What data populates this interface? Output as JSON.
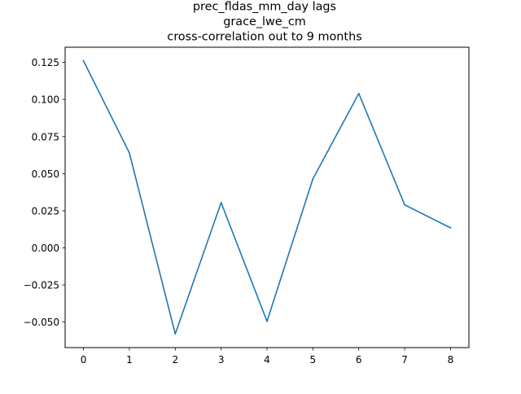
{
  "chart_data": {
    "type": "line",
    "title": [
      "prec_fldas_mm_day lags",
      "grace_lwe_cm",
      "cross-correlation out to 9 months"
    ],
    "xlabel": "",
    "ylabel": "",
    "x": [
      0,
      1,
      2,
      3,
      4,
      5,
      6,
      7,
      8
    ],
    "series": [
      {
        "values": [
          0.126,
          0.064,
          -0.058,
          0.0305,
          -0.0495,
          0.0465,
          0.104,
          0.029,
          0.0135
        ],
        "color": "#1f77b4"
      }
    ],
    "xticks": [
      0,
      1,
      2,
      3,
      4,
      5,
      6,
      7,
      8
    ],
    "xtick_labels": [
      "0",
      "1",
      "2",
      "3",
      "4",
      "5",
      "6",
      "7",
      "8"
    ],
    "yticks": [
      -0.05,
      -0.025,
      0.0,
      0.025,
      0.05,
      0.075,
      0.1,
      0.125
    ],
    "ytick_labels": [
      "−0.050",
      "−0.025",
      "0.000",
      "0.025",
      "0.050",
      "0.075",
      "0.100",
      "0.125"
    ],
    "xlim": [
      -0.4,
      8.4
    ],
    "ylim": [
      -0.0672,
      0.1352
    ],
    "grid": false,
    "legend": "none"
  }
}
